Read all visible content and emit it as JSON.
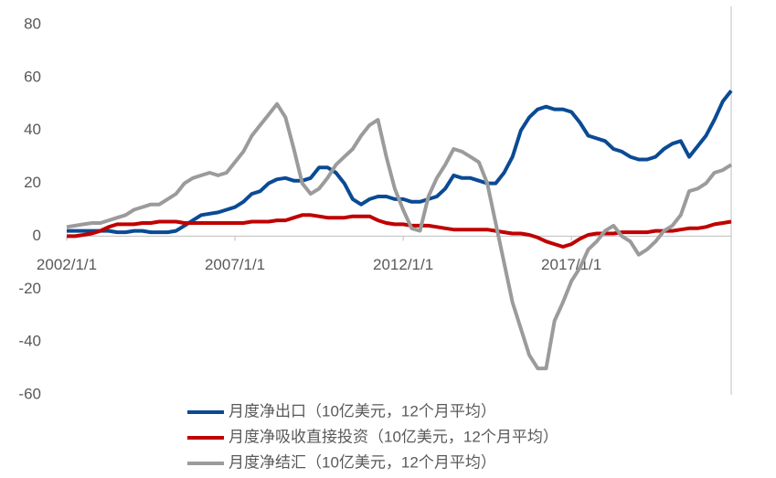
{
  "chart_data": {
    "type": "line",
    "x": [
      "2002/1/1",
      "2002/4/1",
      "2002/7/1",
      "2002/10/1",
      "2003/1/1",
      "2003/4/1",
      "2003/7/1",
      "2003/10/1",
      "2004/1/1",
      "2004/4/1",
      "2004/7/1",
      "2004/10/1",
      "2005/1/1",
      "2005/4/1",
      "2005/7/1",
      "2005/10/1",
      "2006/1/1",
      "2006/4/1",
      "2006/7/1",
      "2006/10/1",
      "2007/1/1",
      "2007/4/1",
      "2007/7/1",
      "2007/10/1",
      "2008/1/1",
      "2008/4/1",
      "2008/7/1",
      "2008/10/1",
      "2009/1/1",
      "2009/4/1",
      "2009/7/1",
      "2009/10/1",
      "2010/1/1",
      "2010/4/1",
      "2010/7/1",
      "2010/10/1",
      "2011/1/1",
      "2011/4/1",
      "2011/7/1",
      "2011/10/1",
      "2012/1/1",
      "2012/4/1",
      "2012/7/1",
      "2012/10/1",
      "2013/1/1",
      "2013/4/1",
      "2013/7/1",
      "2013/10/1",
      "2014/1/1",
      "2014/4/1",
      "2014/7/1",
      "2014/10/1",
      "2015/1/1",
      "2015/4/1",
      "2015/7/1",
      "2015/10/1",
      "2016/1/1",
      "2016/4/1",
      "2016/7/1",
      "2016/10/1",
      "2017/1/1",
      "2017/4/1",
      "2017/7/1",
      "2017/10/1",
      "2018/1/1",
      "2018/4/1",
      "2018/7/1",
      "2018/10/1",
      "2019/1/1",
      "2019/4/1",
      "2019/7/1",
      "2019/10/1",
      "2020/1/1",
      "2020/4/1",
      "2020/7/1",
      "2020/10/1",
      "2021/1/1",
      "2021/4/1",
      "2021/7/1",
      "2021/10/1"
    ],
    "series": [
      {
        "name": "月度净出口（10亿美元，12个月平均）",
        "color": "#0b4a94",
        "values": [
          2,
          2,
          2,
          2,
          2,
          2,
          1.5,
          1.5,
          2,
          2,
          1.5,
          1.5,
          1.5,
          2,
          4,
          6,
          8,
          8.5,
          9,
          10,
          11,
          13,
          16,
          17,
          20,
          21.5,
          22,
          21,
          21,
          22,
          26,
          26,
          24,
          20,
          14,
          12,
          14,
          15,
          15,
          14,
          14,
          13,
          13,
          14,
          15,
          18,
          23,
          22,
          22,
          21,
          20,
          20,
          24,
          30,
          40,
          45,
          48,
          49,
          48,
          48,
          47,
          43,
          38,
          37,
          36,
          33,
          32,
          30,
          29,
          29,
          30,
          33,
          35,
          36,
          30,
          34,
          38,
          44,
          51,
          55
        ]
      },
      {
        "name": "月度净吸收直接投资（10亿美元，12个月平均）",
        "color": "#c00000",
        "values": [
          0,
          0,
          0.5,
          1,
          2,
          3.5,
          4.5,
          4.5,
          4.5,
          5,
          5,
          5.5,
          5.5,
          5.5,
          5,
          5,
          5,
          5,
          5,
          5,
          5,
          5,
          5.5,
          5.5,
          5.5,
          6,
          6,
          7,
          8,
          8,
          7.5,
          7,
          7,
          7,
          7.5,
          7.5,
          7.5,
          6,
          5,
          4.5,
          4.5,
          4,
          4,
          4,
          3.5,
          3,
          2.5,
          2.5,
          2.5,
          2.5,
          2.5,
          2,
          1.5,
          1,
          1,
          0.5,
          -0.5,
          -2,
          -3,
          -4,
          -3,
          -1,
          0.5,
          1,
          1,
          1,
          1.5,
          1.5,
          1.5,
          1.5,
          2,
          2,
          2,
          2.5,
          3,
          3,
          3.5,
          4.5,
          5,
          5.5
        ]
      },
      {
        "name": "月度净结汇（10亿美元，12个月平均）",
        "color": "#9b9b9b",
        "values": [
          3.5,
          4,
          4.5,
          5,
          5,
          6,
          7,
          8,
          10,
          11,
          12,
          12,
          14,
          16,
          20,
          22,
          23,
          24,
          23,
          24,
          28,
          32,
          38,
          42,
          46,
          50,
          45,
          33,
          20,
          16,
          18,
          22,
          27,
          30,
          33,
          38,
          42,
          44,
          30,
          18,
          10,
          3,
          2,
          15,
          22,
          27,
          33,
          32,
          30,
          28,
          20,
          5,
          -10,
          -25,
          -35,
          -45,
          -50,
          -50,
          -32,
          -25,
          -17,
          -12,
          -5,
          -2,
          2,
          4,
          0,
          -2,
          -7,
          -5,
          -2,
          2,
          4,
          8,
          17,
          18,
          20,
          24,
          25,
          27
        ]
      }
    ],
    "xlim": [
      "2002/1/1",
      "2021/10/1"
    ],
    "xticks": [
      "2002/1/1",
      "2007/1/1",
      "2012/1/1",
      "2017/1/1"
    ],
    "ylim": [
      -60,
      80
    ],
    "yticks": [
      -60,
      -40,
      -20,
      0,
      20,
      40,
      60,
      80
    ]
  }
}
